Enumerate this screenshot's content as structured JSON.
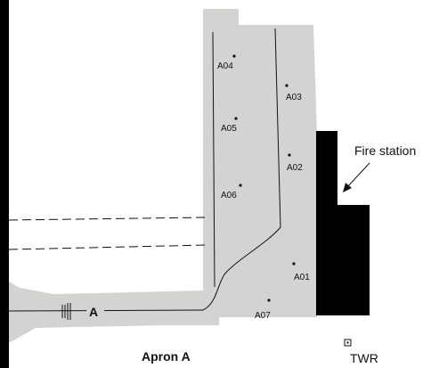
{
  "map": {
    "colors": {
      "apron": "#d3d3d1",
      "building": "#000000",
      "line": "#111111",
      "background": "#ffffff"
    },
    "stands": [
      "A01",
      "A02",
      "A03",
      "A04",
      "A05",
      "A06",
      "A07"
    ],
    "taxiway_label": "A",
    "apron_label": "Apron A",
    "fire_station_label": "Fire station",
    "tower_label": "TWR"
  }
}
